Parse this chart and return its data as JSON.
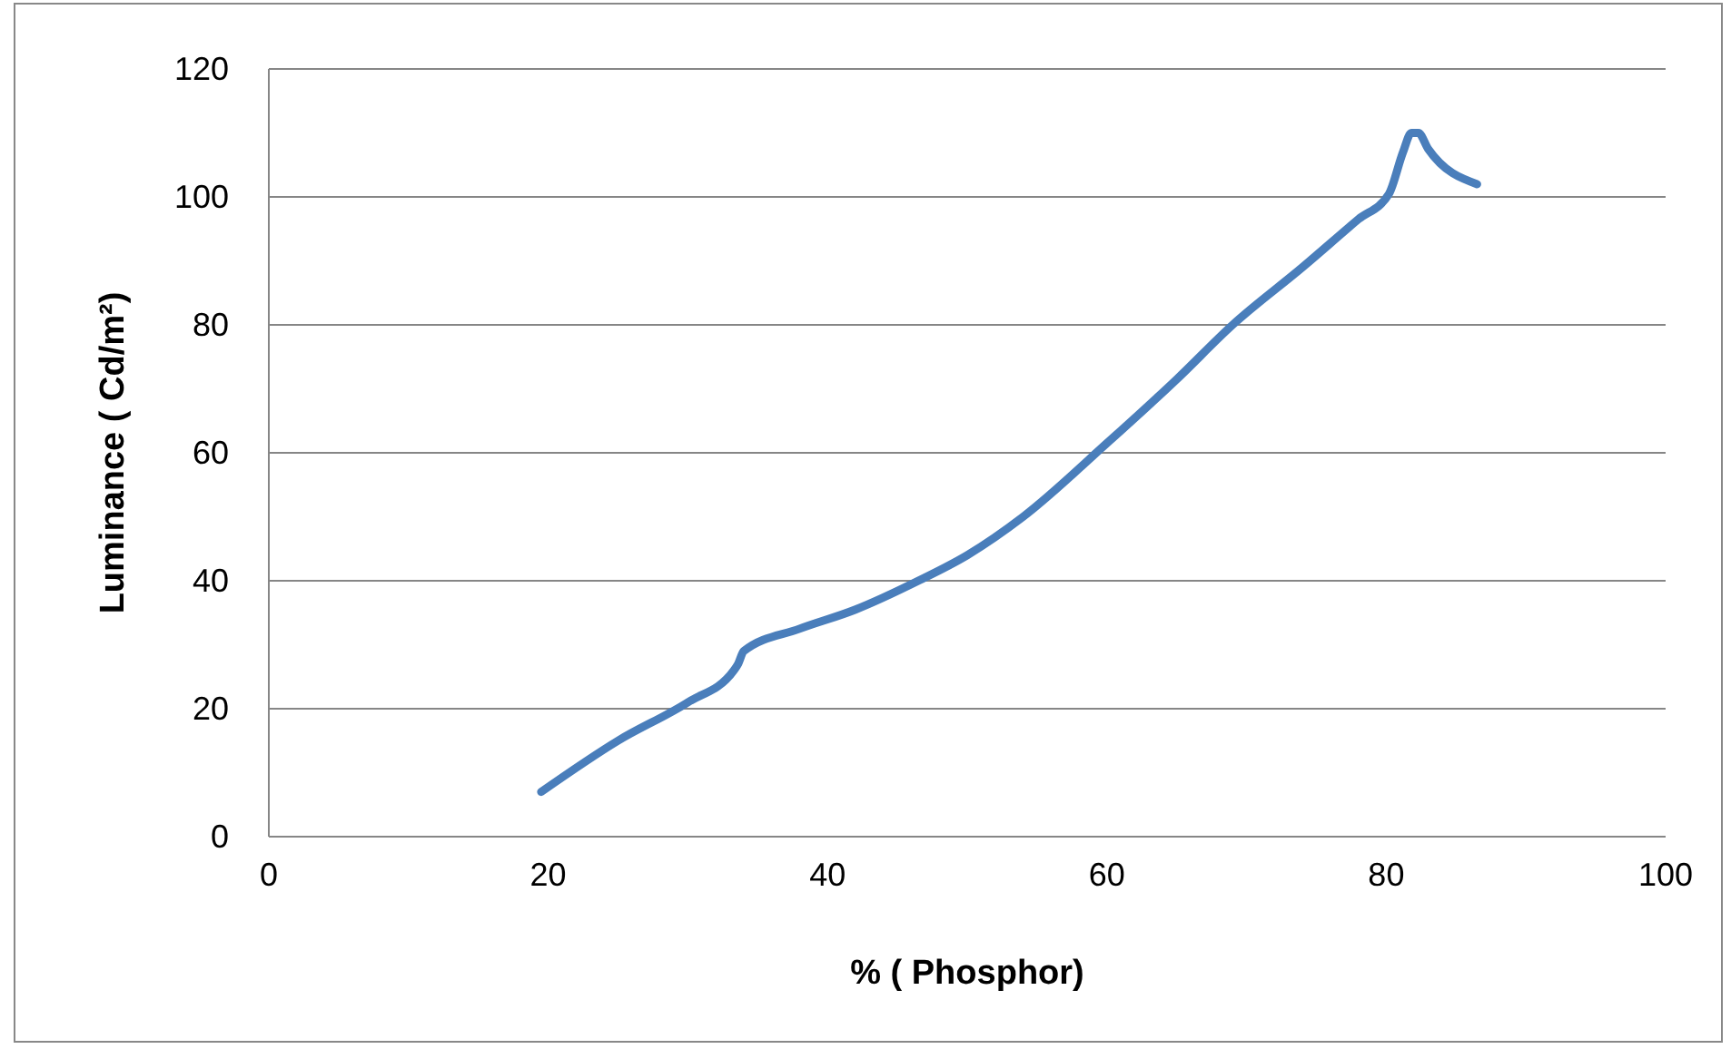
{
  "chart_data": {
    "type": "line",
    "xlabel": "% ( Phosphor)",
    "ylabel": "Luminance ( Cd/m²)",
    "x": [
      19.5,
      25,
      30,
      33.3,
      33.6,
      34,
      38,
      42,
      46.5,
      50,
      54,
      60,
      65,
      69,
      74,
      78,
      80.2,
      81.2,
      81.8,
      82.3,
      83,
      86.5
    ],
    "series": [
      {
        "color": "#4a7ebb",
        "values": [
          7,
          15,
          21,
          26,
          27,
          29,
          32.5,
          35.5,
          40,
          44,
          50,
          61.5,
          71.5,
          80,
          89,
          96.5,
          100.5,
          107,
          110,
          110,
          107.5,
          102
        ]
      }
    ],
    "xlim": [
      0,
      100
    ],
    "xticks": [
      0,
      20,
      40,
      60,
      80,
      100
    ],
    "ylim": [
      0,
      120
    ],
    "yticks": [
      0,
      20,
      40,
      60,
      80,
      100,
      120
    ],
    "grid": "y",
    "marker": "none",
    "line_style": "solid"
  }
}
